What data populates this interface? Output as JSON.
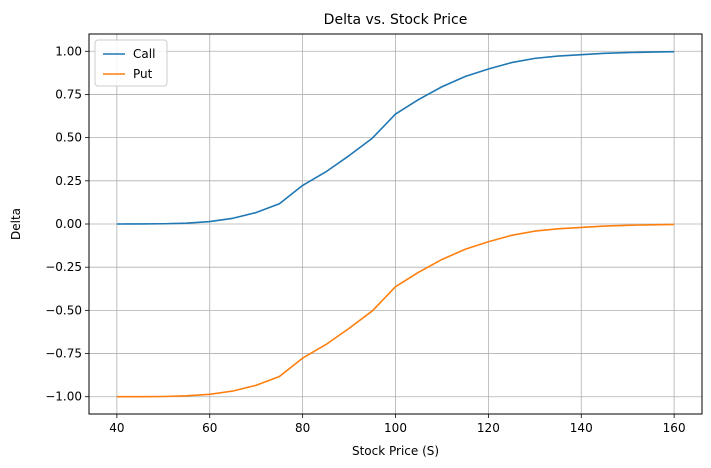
{
  "chart_data": {
    "type": "line",
    "title": "Delta vs. Stock Price",
    "xlabel": "Stock Price (S)",
    "ylabel": "Delta",
    "xlim": [
      34,
      166
    ],
    "ylim": [
      -1.1,
      1.1
    ],
    "xticks": [
      40,
      60,
      80,
      100,
      120,
      140,
      160
    ],
    "yticks": [
      -1.0,
      -0.75,
      -0.5,
      -0.25,
      0.0,
      0.25,
      0.5,
      0.75,
      1.0
    ],
    "xtick_labels": [
      "40",
      "60",
      "80",
      "100",
      "120",
      "140",
      "160"
    ],
    "ytick_labels": [
      "−1.00",
      "−0.75",
      "−0.50",
      "−0.25",
      "0.00",
      "0.25",
      "0.50",
      "0.75",
      "1.00"
    ],
    "grid": true,
    "legend": "top-left",
    "x": [
      40,
      45,
      50,
      55,
      60,
      65,
      70,
      75,
      80,
      85,
      90,
      95,
      100,
      105,
      110,
      115,
      120,
      125,
      130,
      135,
      140,
      145,
      150,
      155,
      160
    ],
    "series": [
      {
        "name": "Call",
        "color": "#1f77b4",
        "values": [
          0.0,
          0.0003,
          0.0014,
          0.005,
          0.0141,
          0.0331,
          0.0663,
          0.117,
          0.2235,
          0.3018,
          0.3956,
          0.4966,
          0.6368,
          0.721,
          0.7946,
          0.8538,
          0.8974,
          0.9345,
          0.9589,
          0.9722,
          0.98,
          0.988,
          0.9925,
          0.9955,
          0.9975
        ]
      },
      {
        "name": "Put",
        "color": "#ff7f0e",
        "values": [
          -1.0,
          -0.9997,
          -0.9986,
          -0.995,
          -0.9859,
          -0.9669,
          -0.9337,
          -0.883,
          -0.7765,
          -0.6982,
          -0.6044,
          -0.5034,
          -0.3632,
          -0.279,
          -0.2054,
          -0.1462,
          -0.1026,
          -0.0655,
          -0.0411,
          -0.0278,
          -0.02,
          -0.012,
          -0.0075,
          -0.0045,
          -0.0025
        ]
      }
    ]
  }
}
